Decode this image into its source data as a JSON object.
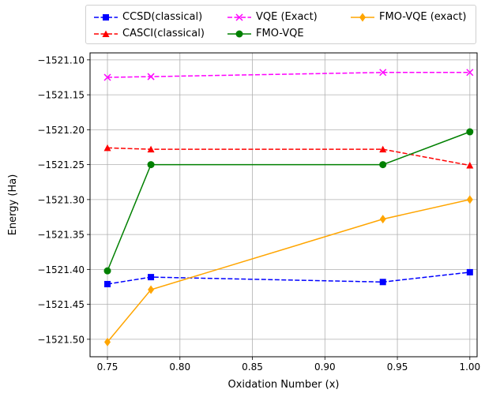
{
  "chart_data": {
    "type": "line",
    "title": "",
    "xlabel": "Oxidation Number (x)",
    "ylabel": "Energy (Ha)",
    "xlim": [
      0.738,
      1.005
    ],
    "ylim": [
      -1521.525,
      -1521.09
    ],
    "xticks": [
      0.75,
      0.8,
      0.85,
      0.9,
      0.95,
      1.0
    ],
    "xtick_labels": [
      "0.75",
      "0.80",
      "0.85",
      "0.90",
      "0.95",
      "1.00"
    ],
    "yticks": [
      -1521.1,
      -1521.15,
      -1521.2,
      -1521.25,
      -1521.3,
      -1521.35,
      -1521.4,
      -1521.45,
      -1521.5
    ],
    "ytick_labels": [
      "−1521.10",
      "−1521.15",
      "−1521.20",
      "−1521.25",
      "−1521.30",
      "−1521.35",
      "−1521.40",
      "−1521.45",
      "−1521.50"
    ],
    "grid": true,
    "legend_position": "top, above plot",
    "x": [
      0.75,
      0.78,
      0.94,
      1.0
    ],
    "series": [
      {
        "name": "CCSD(classical)",
        "color": "#0000ff",
        "dash": "dashed",
        "marker": "square",
        "values": [
          -1521.421,
          -1521.411,
          -1521.418,
          -1521.404
        ]
      },
      {
        "name": "CASCI(classical)",
        "color": "#ff0000",
        "dash": "dashed",
        "marker": "triangle",
        "values": [
          -1521.226,
          -1521.228,
          -1521.228,
          -1521.251
        ]
      },
      {
        "name": "VQE (Exact)",
        "color": "#ff00ff",
        "dash": "dashed",
        "marker": "x",
        "values": [
          -1521.125,
          -1521.124,
          -1521.118,
          -1521.118
        ]
      },
      {
        "name": "FMO-VQE",
        "color": "#008000",
        "dash": "solid",
        "marker": "circle",
        "values": [
          -1521.402,
          -1521.25,
          -1521.25,
          -1521.203
        ]
      },
      {
        "name": "FMO-VQE (exact)",
        "color": "#ffa500",
        "dash": "solid",
        "marker": "diamond",
        "values": [
          -1521.504,
          -1521.429,
          -1521.328,
          -1521.3
        ]
      }
    ]
  }
}
